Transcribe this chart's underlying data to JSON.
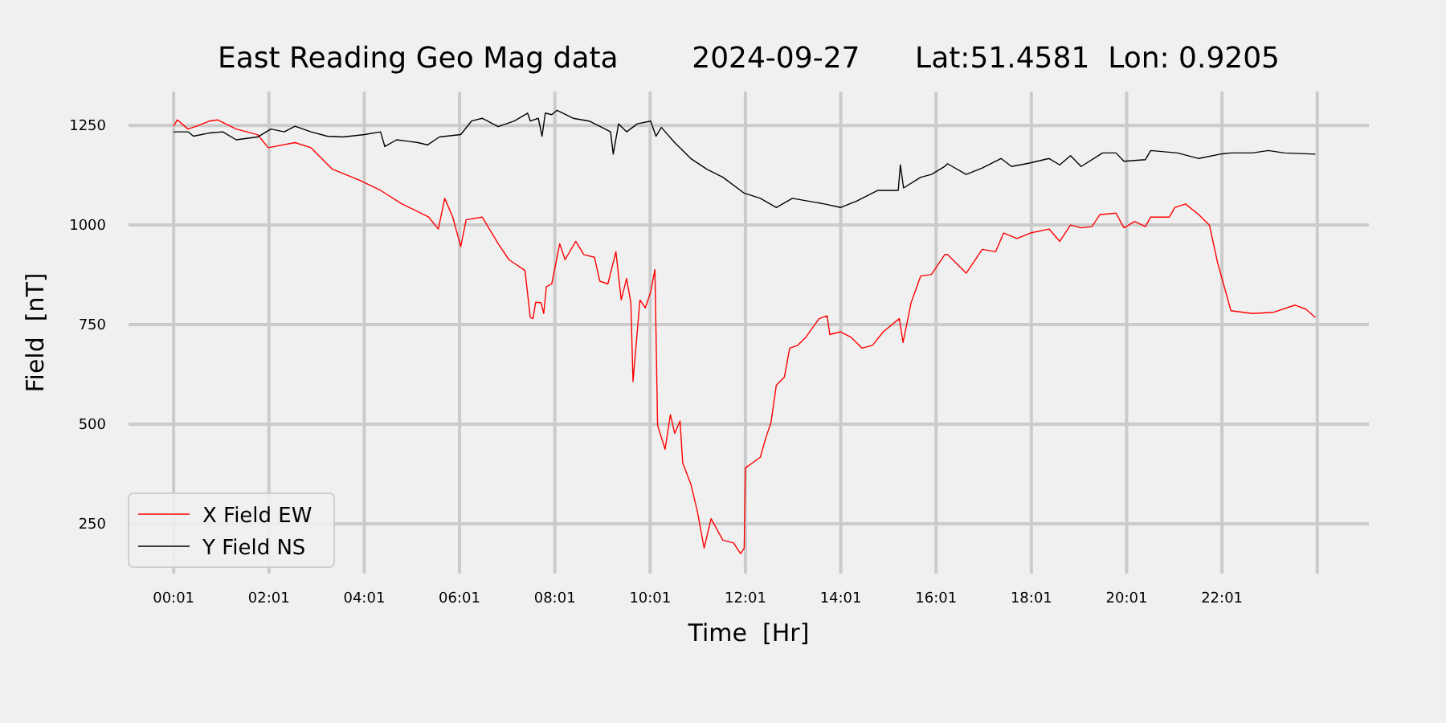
{
  "chart_data": {
    "type": "line",
    "title": "East Reading Geo Mag data        2024-09-27      Lat:51.4581  Lon: 0.9205",
    "xlabel": "Time  [Hr]",
    "ylabel": "Field  [nT]",
    "xlim": [
      -0.93,
      25.1
    ],
    "ylim": [
      125,
      1335
    ],
    "xticks": [
      {
        "value": 0.0167,
        "label": "00:01"
      },
      {
        "value": 2.0167,
        "label": "02:01"
      },
      {
        "value": 4.0167,
        "label": "04:01"
      },
      {
        "value": 6.0167,
        "label": "06:01"
      },
      {
        "value": 8.0167,
        "label": "08:01"
      },
      {
        "value": 10.0167,
        "label": "10:01"
      },
      {
        "value": 12.0167,
        "label": "12:01"
      },
      {
        "value": 14.0167,
        "label": "14:01"
      },
      {
        "value": 16.0167,
        "label": "16:01"
      },
      {
        "value": 18.0167,
        "label": "18:01"
      },
      {
        "value": 20.0167,
        "label": "20:01"
      },
      {
        "value": 22.0167,
        "label": "22:01"
      },
      {
        "value": 24.0167,
        "label": null
      }
    ],
    "yticks": [
      250,
      500,
      750,
      1000,
      1250
    ],
    "grid": true,
    "legend": "bottom left",
    "marker": "none",
    "line_style": "solid",
    "series": [
      {
        "name": "X Field EW",
        "color": "#ff0000",
        "x": [
          0.015,
          0.094,
          0.319,
          0.543,
          0.767,
          0.936,
          1.329,
          1.778,
          2.002,
          2.563,
          2.9,
          3.349,
          3.91,
          4.359,
          4.808,
          5.369,
          5.571,
          5.706,
          5.874,
          6.042,
          6.155,
          6.491,
          6.828,
          7.053,
          7.39,
          7.501,
          7.558,
          7.614,
          7.726,
          7.783,
          7.839,
          7.951,
          8.119,
          8.231,
          8.456,
          8.624,
          8.849,
          8.961,
          9.129,
          9.298,
          9.41,
          9.522,
          9.612,
          9.657,
          9.803,
          9.915,
          10.027,
          10.117,
          10.173,
          10.33,
          10.442,
          10.532,
          10.644,
          10.7,
          10.869,
          11.004,
          11.15,
          11.295,
          11.542,
          11.767,
          11.913,
          11.991,
          12.014,
          12.328,
          12.44,
          12.552,
          12.665,
          12.833,
          12.945,
          13.114,
          13.282,
          13.562,
          13.731,
          13.787,
          14.011,
          14.236,
          14.46,
          14.684,
          14.909,
          15.246,
          15.324,
          15.493,
          15.695,
          15.92,
          16.2,
          16.257,
          16.649,
          16.986,
          17.267,
          17.435,
          17.716,
          17.996,
          18.389,
          18.613,
          18.838,
          19.062,
          19.287,
          19.455,
          19.792,
          19.96,
          20.185,
          20.409,
          20.521,
          20.914,
          21.027,
          21.251,
          21.532,
          21.756,
          21.924,
          22.205,
          22.654,
          23.103,
          23.552,
          23.776,
          23.978
        ],
        "values": [
          1248,
          1264,
          1241,
          1250,
          1261,
          1264,
          1241,
          1227,
          1194,
          1207,
          1194,
          1140,
          1113,
          1087,
          1053,
          1020,
          990,
          1067,
          1020,
          946,
          1013,
          1020,
          953,
          913,
          886,
          768,
          765,
          806,
          805,
          778,
          845,
          852,
          953,
          913,
          959,
          926,
          919,
          859,
          852,
          933,
          812,
          866,
          805,
          607,
          812,
          792,
          832,
          888,
          497,
          437,
          524,
          477,
          508,
          403,
          350,
          283,
          189,
          263,
          209,
          202,
          175,
          189,
          390,
          417,
          464,
          504,
          598,
          618,
          691,
          698,
          718,
          765,
          772,
          725,
          732,
          718,
          691,
          698,
          732,
          765,
          705,
          805,
          872,
          876,
          926,
          926,
          879,
          939,
          933,
          980,
          966,
          980,
          990,
          959,
          1000,
          993,
          996,
          1026,
          1030,
          993,
          1009,
          996,
          1020,
          1020,
          1044,
          1053,
          1026,
          999,
          906,
          785,
          778,
          781,
          799,
          789,
          768
        ]
      },
      {
        "name": "Y Field NS",
        "color": "#000000",
        "x": [
          0.015,
          0.319,
          0.431,
          0.767,
          1.048,
          1.329,
          1.778,
          2.058,
          2.339,
          2.563,
          2.9,
          3.237,
          3.573,
          4.022,
          4.359,
          4.449,
          4.696,
          5.145,
          5.347,
          5.593,
          6.042,
          6.267,
          6.491,
          6.828,
          7.165,
          7.445,
          7.502,
          7.67,
          7.748,
          7.816,
          7.951,
          8.063,
          8.4,
          8.737,
          9.073,
          9.186,
          9.242,
          9.354,
          9.522,
          9.747,
          10.027,
          10.139,
          10.252,
          10.532,
          10.869,
          11.206,
          11.542,
          11.991,
          12.328,
          12.665,
          13.001,
          13.338,
          13.675,
          14.011,
          14.348,
          14.797,
          15.223,
          15.268,
          15.335,
          15.695,
          15.92,
          16.201,
          16.256,
          16.649,
          16.986,
          17.379,
          17.603,
          17.996,
          18.389,
          18.613,
          18.838,
          19.062,
          19.511,
          19.792,
          19.96,
          20.409,
          20.521,
          21.082,
          21.532,
          21.981,
          22.205,
          22.654,
          22.99,
          23.327,
          23.978
        ],
        "values": [
          1234,
          1234,
          1223,
          1231,
          1234,
          1214,
          1221,
          1241,
          1234,
          1248,
          1234,
          1223,
          1221,
          1227,
          1234,
          1197,
          1214,
          1207,
          1201,
          1221,
          1227,
          1261,
          1268,
          1247,
          1261,
          1281,
          1261,
          1268,
          1223,
          1281,
          1277,
          1288,
          1268,
          1261,
          1241,
          1234,
          1178,
          1254,
          1234,
          1254,
          1261,
          1223,
          1245,
          1207,
          1167,
          1140,
          1120,
          1080,
          1067,
          1044,
          1067,
          1060,
          1053,
          1044,
          1060,
          1087,
          1087,
          1151,
          1093,
          1120,
          1127,
          1147,
          1154,
          1127,
          1143,
          1167,
          1147,
          1156,
          1167,
          1151,
          1174,
          1147,
          1181,
          1181,
          1160,
          1164,
          1187,
          1181,
          1167,
          1178,
          1181,
          1181,
          1187,
          1181,
          1178
        ]
      }
    ]
  }
}
